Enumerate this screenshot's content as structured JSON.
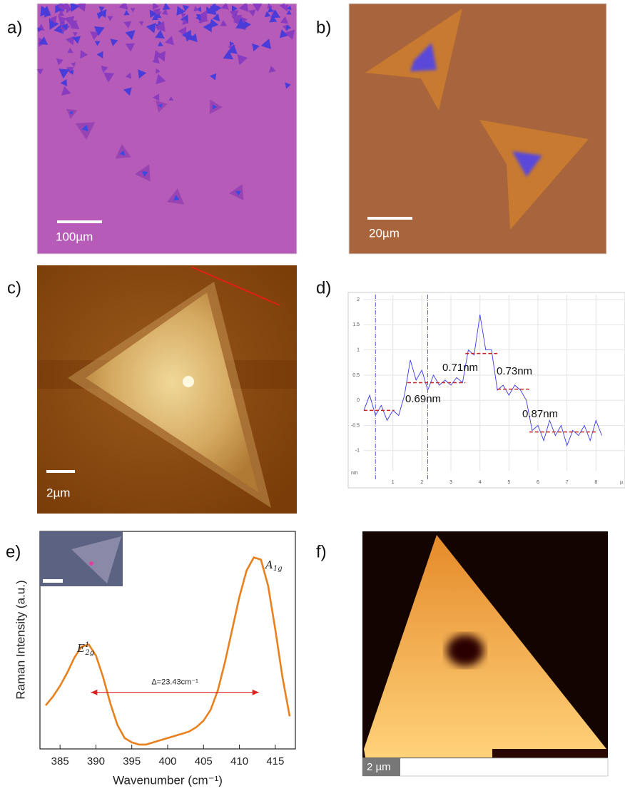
{
  "panels": {
    "a": {
      "label": "a)",
      "scale_bar": "100µm"
    },
    "b": {
      "label": "b)",
      "scale_bar": "20µm"
    },
    "c": {
      "label": "c)",
      "scale_bar": "2µm"
    },
    "d": {
      "label": "d)"
    },
    "e": {
      "label": "e)"
    },
    "f": {
      "label": "f)",
      "scale_bar": "2 µm"
    }
  },
  "chart_data": [
    {
      "type": "line",
      "x_unit": "µ",
      "y_unit": "nm",
      "x": [
        0,
        0.2,
        0.4,
        0.6,
        0.8,
        1.0,
        1.2,
        1.4,
        1.6,
        1.8,
        2.0,
        2.2,
        2.4,
        2.6,
        2.8,
        3.0,
        3.2,
        3.4,
        3.6,
        3.8,
        4.0,
        4.2,
        4.4,
        4.6,
        4.8,
        5.0,
        5.2,
        5.4,
        5.6,
        5.8,
        6.0,
        6.2,
        6.4,
        6.6,
        6.8,
        7.0,
        7.2,
        7.4,
        7.6,
        7.8,
        8.0,
        8.2
      ],
      "series": [
        {
          "color": "#3a3ae8",
          "values": [
            -0.2,
            0.1,
            -0.3,
            -0.1,
            -0.4,
            -0.2,
            -0.3,
            0.1,
            0.8,
            0.4,
            0.6,
            0.2,
            0.5,
            0.3,
            0.4,
            0.3,
            0.45,
            0.35,
            1.0,
            0.9,
            1.7,
            1.0,
            1.0,
            0.2,
            0.3,
            0.1,
            0.3,
            0.2,
            0.0,
            -0.6,
            -0.5,
            -0.8,
            -0.4,
            -0.7,
            -0.5,
            -0.9,
            -0.6,
            -0.7,
            -0.5,
            -0.8,
            -0.4,
            -0.7
          ]
        }
      ],
      "xlim": [
        0,
        9
      ],
      "ylim": [
        -1.4,
        2.1
      ],
      "xticks": [
        1,
        2,
        3,
        4,
        5,
        6,
        7,
        8
      ],
      "yticks": [
        -1,
        -0.5,
        0,
        0.5,
        1,
        1.5,
        2
      ],
      "grid": true,
      "cursors": [
        0.4,
        2.2
      ],
      "levels": [
        {
          "x": [
            0,
            1.05
          ],
          "y": -0.2
        },
        {
          "x": [
            1.5,
            3.5
          ],
          "y": 0.35
        },
        {
          "x": [
            3.5,
            4.6
          ],
          "y": 0.93
        },
        {
          "x": [
            4.6,
            5.7
          ],
          "y": 0.22
        },
        {
          "x": [
            5.7,
            8.0
          ],
          "y": -0.63
        }
      ],
      "level_color": "#cc2222",
      "annotations": [
        "0.69nm",
        "0.71nm",
        "0.73nm",
        "0.87nm"
      ]
    },
    {
      "type": "line",
      "xlabel": "Wavenumber (cm⁻¹)",
      "ylabel": "Raman Intensity (a.u.)",
      "x": [
        383,
        384,
        385,
        386,
        387,
        388,
        389,
        390,
        391,
        392,
        393,
        394,
        395,
        396,
        397,
        398,
        399,
        400,
        401,
        402,
        403,
        404,
        405,
        406,
        407,
        408,
        409,
        410,
        411,
        412,
        413,
        414,
        415,
        416,
        417
      ],
      "series": [
        {
          "color": "#e8801e",
          "values": [
            0.2,
            0.24,
            0.29,
            0.35,
            0.42,
            0.47,
            0.48,
            0.43,
            0.33,
            0.21,
            0.11,
            0.05,
            0.03,
            0.02,
            0.02,
            0.03,
            0.04,
            0.05,
            0.06,
            0.07,
            0.08,
            0.1,
            0.13,
            0.18,
            0.27,
            0.4,
            0.55,
            0.7,
            0.82,
            0.88,
            0.87,
            0.75,
            0.55,
            0.33,
            0.15
          ]
        }
      ],
      "xlim": [
        382.2,
        417.8
      ],
      "ylim": [
        0,
        1
      ],
      "xticks": [
        385,
        390,
        395,
        400,
        405,
        410,
        415
      ],
      "peaks": [
        {
          "base": "E",
          "sub": "2g",
          "sup": "1"
        },
        {
          "base": "A",
          "sub": "1g"
        }
      ],
      "delta": {
        "label": "Δ=23.43cm⁻¹",
        "from": 389.3,
        "to": 412.7,
        "y": 0.26,
        "color": "#dd2222"
      }
    }
  ]
}
